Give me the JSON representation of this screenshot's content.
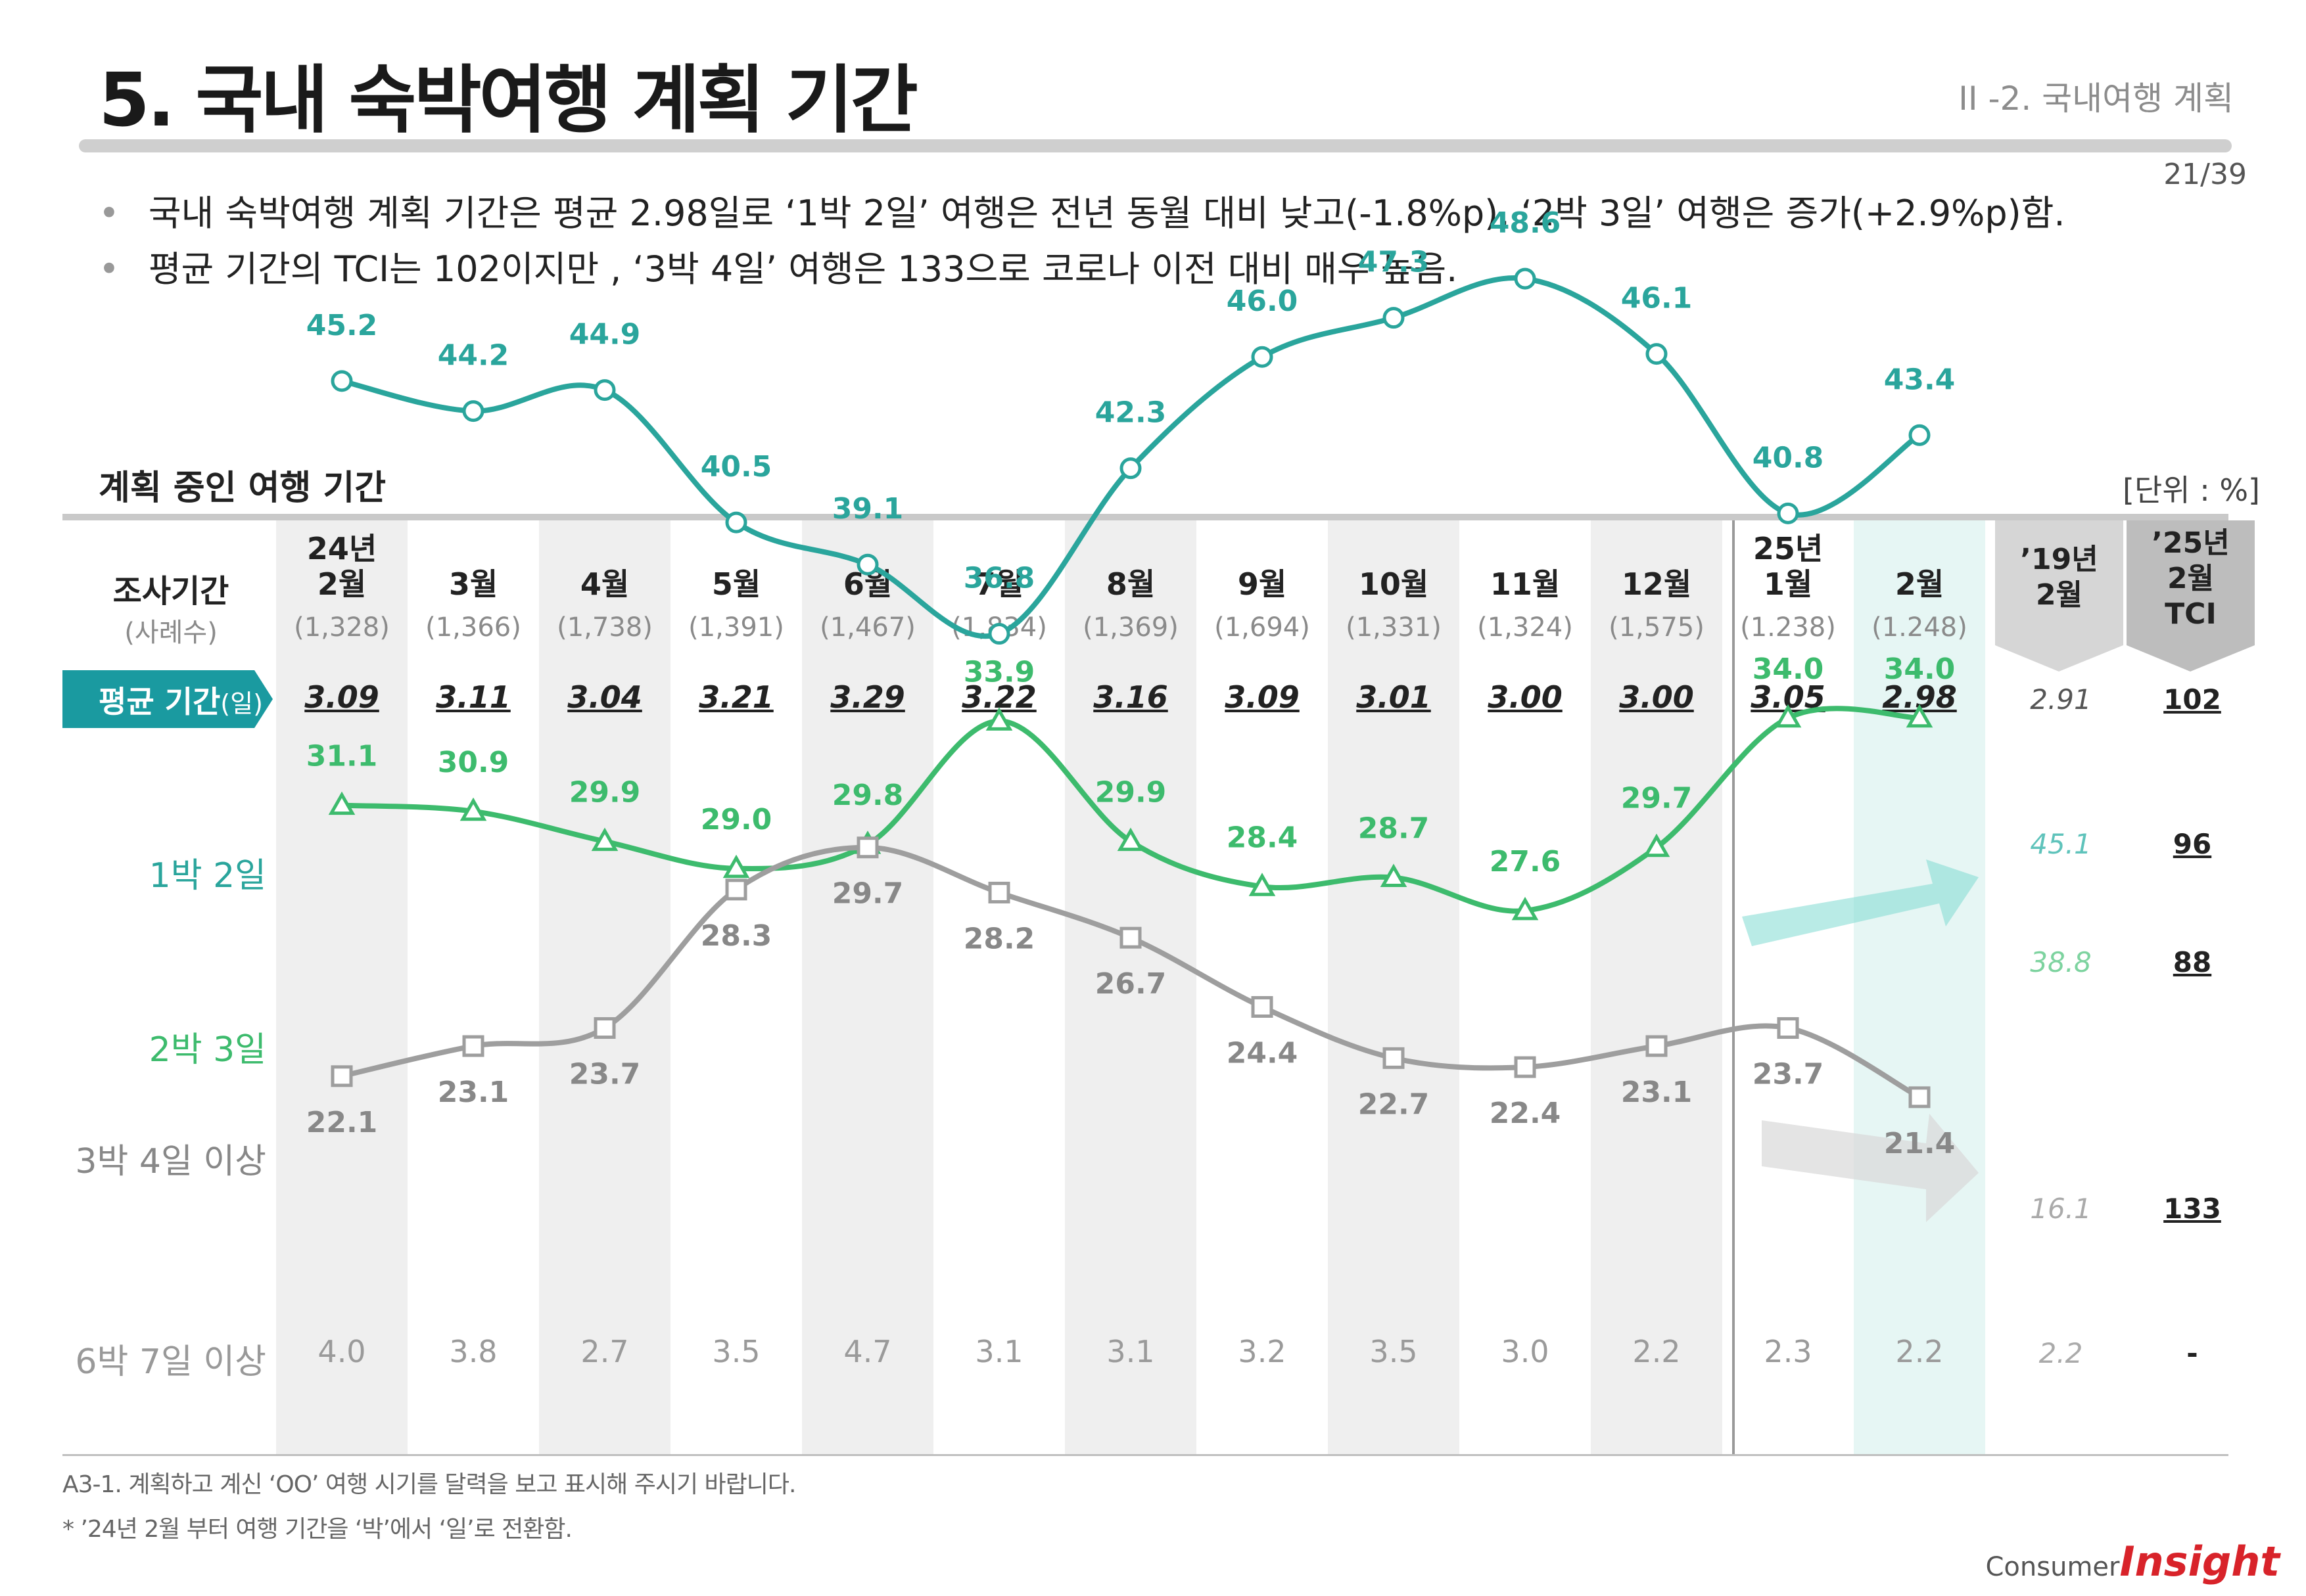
{
  "header": {
    "title": "5. 국내 숙박여행 계획 기간",
    "section": "II -2. 국내여행 계획",
    "page": "21/39"
  },
  "bullets": [
    "국내 숙박여행 계획 기간은 평균 2.98일로 ‘1박 2일’ 여행은 전년 동월 대비 낮고(-1.8%p), ‘2박 3일’ 여행은 증가(+2.9%p)함.",
    "평균 기간의 TCI는 102이지만 , ‘3박 4일’ 여행은 133으로 코로나 이전 대비 매우 높음."
  ],
  "table": {
    "title": "계획 중인 여행 기간",
    "unit": "[단위 : %]",
    "period_label": "조사기간",
    "sample_label": "(사례수)",
    "avg_label": "평균 기간",
    "avg_unit": "(일)",
    "ref_header": [
      "’19년",
      "2월"
    ],
    "tci_header": [
      "’25년",
      "2월",
      "TCI"
    ]
  },
  "months": [
    {
      "year": "24년",
      "month": "2월",
      "n": "(1,328)",
      "avg": "3.09"
    },
    {
      "year": "",
      "month": "3월",
      "n": "(1,366)",
      "avg": "3.11"
    },
    {
      "year": "",
      "month": "4월",
      "n": "(1,738)",
      "avg": "3.04"
    },
    {
      "year": "",
      "month": "5월",
      "n": "(1,391)",
      "avg": "3.21"
    },
    {
      "year": "",
      "month": "6월",
      "n": "(1,467)",
      "avg": "3.29"
    },
    {
      "year": "",
      "month": "7월",
      "n": "(1,834)",
      "avg": "3.22"
    },
    {
      "year": "",
      "month": "8월",
      "n": "(1,369)",
      "avg": "3.16"
    },
    {
      "year": "",
      "month": "9월",
      "n": "(1,694)",
      "avg": "3.09"
    },
    {
      "year": "",
      "month": "10월",
      "n": "(1,331)",
      "avg": "3.01"
    },
    {
      "year": "",
      "month": "11월",
      "n": "(1,324)",
      "avg": "3.00"
    },
    {
      "year": "",
      "month": "12월",
      "n": "(1,575)",
      "avg": "3.00"
    },
    {
      "year": "25년",
      "month": "1월",
      "n": "(1.238)",
      "avg": "3.05"
    },
    {
      "year": "",
      "month": "2월",
      "n": "(1.248)",
      "avg": "2.98"
    }
  ],
  "chart_data": {
    "type": "line",
    "categories": [
      "24년 2월",
      "3월",
      "4월",
      "5월",
      "6월",
      "7월",
      "8월",
      "9월",
      "10월",
      "11월",
      "12월",
      "25년 1월",
      "2월"
    ],
    "series": [
      {
        "name": "1박 2일",
        "values": [
          45.2,
          44.2,
          44.9,
          40.5,
          39.1,
          36.8,
          42.3,
          46.0,
          47.3,
          48.6,
          46.1,
          40.8,
          43.4
        ],
        "labels": [
          "45.2",
          "44.2",
          "44.9",
          "40.5",
          "39.1",
          "36.8",
          "42.3",
          "46.0",
          "47.3",
          "48.6",
          "46.1",
          "40.8",
          "43.4"
        ],
        "color": "#2aa59c",
        "marker": "circle"
      },
      {
        "name": "2박 3일",
        "values": [
          31.1,
          30.9,
          29.9,
          29.0,
          29.8,
          33.9,
          29.9,
          28.4,
          28.7,
          27.6,
          29.7,
          34.0,
          34.0
        ],
        "labels": [
          "31.1",
          "30.9",
          "29.9",
          "29.0",
          "29.8",
          "33.9",
          "29.9",
          "28.4",
          "28.7",
          "27.6",
          "29.7",
          "34.0",
          "34.0"
        ],
        "color": "#3dbb6d",
        "marker": "triangle"
      },
      {
        "name": "3박 4일 이상",
        "values": [
          22.1,
          23.1,
          23.7,
          28.3,
          29.7,
          28.2,
          26.7,
          24.4,
          22.7,
          22.4,
          23.1,
          23.7,
          21.4
        ],
        "labels": [
          "22.1",
          "23.1",
          "23.7",
          "28.3",
          "29.7",
          "28.2",
          "26.7",
          "24.4",
          "22.7",
          "22.4",
          "23.1",
          "23.7",
          "21.4"
        ],
        "color": "#9e9e9e",
        "marker": "square"
      },
      {
        "name": "6박 7일 이상",
        "values": [
          4.0,
          3.8,
          2.7,
          3.5,
          4.7,
          3.1,
          3.1,
          3.2,
          3.5,
          3.0,
          2.2,
          2.3,
          2.2
        ],
        "labels": [
          "4.0",
          "3.8",
          "2.7",
          "3.5",
          "4.7",
          "3.1",
          "3.1",
          "3.2",
          "3.5",
          "3.0",
          "2.2",
          "2.3",
          "2.2"
        ],
        "color": "#9a9a9a",
        "marker": "none"
      }
    ],
    "reference_19_feb": {
      "avg": "2.91",
      "1박 2일": "45.1",
      "2박 3일": "38.8",
      "3박 4일 이상": "16.1",
      "6박 7일 이상": "2.2"
    },
    "tci_25_feb": {
      "avg": "102",
      "1박 2일": "96",
      "2박 3일": "88",
      "3박 4일 이상": "133",
      "6박 7일 이상": "-"
    },
    "ylabel": "%"
  },
  "footnotes": [
    "A3-1. 계획하고 계신 ‘OO’ 여행 시기를 달력을 보고 표시해 주시기 바랍니다.",
    "* ’24년 2월 부터 여행 기간을 ‘박’에서 ‘일’로 전환함."
  ],
  "logo": {
    "part1": "Consumer",
    "part2": "Insight"
  }
}
